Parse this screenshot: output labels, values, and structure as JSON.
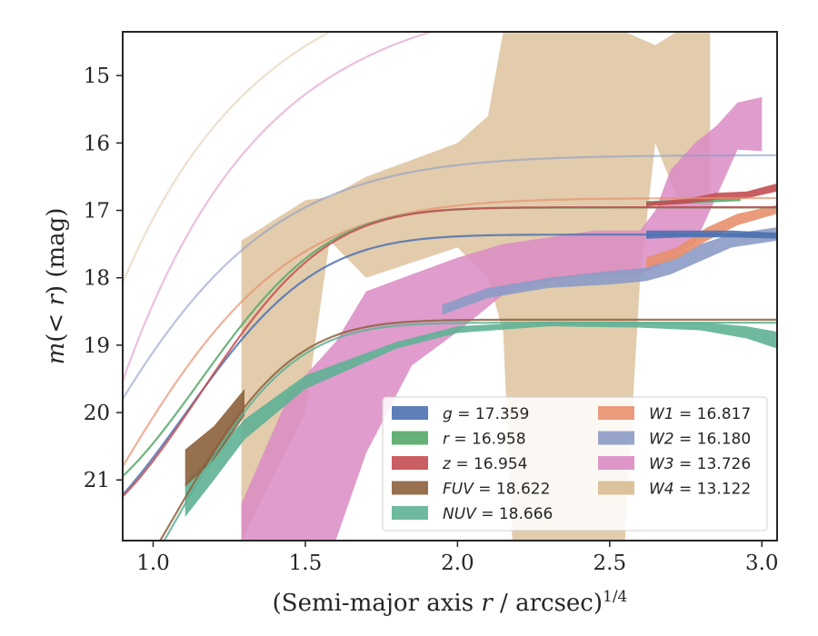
{
  "chart_data": {
    "type": "line",
    "xlabel": "(Semi-major axis r / arcsec)^1/4",
    "ylabel": "m(< r) (mag)",
    "xlim": [
      0.9,
      3.05
    ],
    "ylim": [
      21.9,
      14.35
    ],
    "y_inverted": true,
    "x_ticks": [
      1.0,
      1.5,
      2.0,
      2.5,
      3.0
    ],
    "x_tick_labels": [
      "1.0",
      "1.5",
      "2.0",
      "2.5",
      "3.0"
    ],
    "y_ticks": [
      15,
      16,
      17,
      18,
      19,
      20,
      21
    ],
    "y_tick_labels": [
      "15",
      "16",
      "17",
      "18",
      "19",
      "20",
      "21"
    ],
    "grid": false,
    "legend_position": "lower-right",
    "legend_columns": 2,
    "series": [
      {
        "name": "g",
        "label_var": "g",
        "label_value": "= 17.359",
        "color": "#4c72b0",
        "band": [
          {
            "x": 2.62,
            "lo": 17.3,
            "hi": 17.42
          },
          {
            "x": 2.75,
            "lo": 17.3,
            "hi": 17.4
          },
          {
            "x": 2.9,
            "lo": 17.3,
            "hi": 17.4
          },
          {
            "x": 3.05,
            "lo": 17.33,
            "hi": 17.42
          }
        ],
        "model": {
          "m_inf": 17.359,
          "a": 4.7,
          "x0": 0.55,
          "p": 2.3
        }
      },
      {
        "name": "r",
        "label_var": "r",
        "label_value": "= 16.958",
        "color": "#55a868",
        "band": [
          {
            "x": 2.62,
            "lo": 16.86,
            "hi": 16.93
          },
          {
            "x": 2.75,
            "lo": 16.84,
            "hi": 16.9
          },
          {
            "x": 2.93,
            "lo": 16.81,
            "hi": 16.86
          }
        ],
        "model": {
          "m_inf": 16.958,
          "a": 4.6,
          "x0": 0.58,
          "p": 2.4
        }
      },
      {
        "name": "z",
        "label_var": "z",
        "label_value": "= 16.954",
        "color": "#c44e52",
        "band": [
          {
            "x": 2.62,
            "lo": 16.88,
            "hi": 16.94
          },
          {
            "x": 2.75,
            "lo": 16.83,
            "hi": 16.9
          },
          {
            "x": 2.85,
            "lo": 16.74,
            "hi": 16.84
          },
          {
            "x": 2.95,
            "lo": 16.72,
            "hi": 16.82
          },
          {
            "x": 3.05,
            "lo": 16.6,
            "hi": 16.72
          }
        ],
        "model": {
          "m_inf": 16.954,
          "a": 4.95,
          "x0": 0.58,
          "p": 2.4
        }
      },
      {
        "name": "FUV",
        "label_var": "FUV",
        "label_value": "= 18.622",
        "color": "#8c613c",
        "band": [
          {
            "x": 1.105,
            "lo": 20.55,
            "hi": 21.1
          },
          {
            "x": 1.2,
            "lo": 20.2,
            "hi": 20.7
          },
          {
            "x": 1.3,
            "lo": 19.65,
            "hi": 20.05
          }
        ],
        "model": {
          "m_inf": 18.622,
          "a": 5.5,
          "x0": 0.45,
          "p": 2.6
        }
      },
      {
        "name": "NUV",
        "label_var": "NUV",
        "label_value": "= 18.666",
        "color": "#5fb195",
        "band": [
          {
            "x": 1.105,
            "lo": 21.05,
            "hi": 21.55
          },
          {
            "x": 1.2,
            "lo": 20.6,
            "hi": 21.0
          },
          {
            "x": 1.3,
            "lo": 20.1,
            "hi": 20.4
          },
          {
            "x": 1.5,
            "lo": 19.45,
            "hi": 19.65
          },
          {
            "x": 1.8,
            "lo": 18.95,
            "hi": 19.05
          },
          {
            "x": 2.0,
            "lo": 18.72,
            "hi": 18.82
          },
          {
            "x": 2.3,
            "lo": 18.65,
            "hi": 18.72
          },
          {
            "x": 2.6,
            "lo": 18.66,
            "hi": 18.74
          },
          {
            "x": 2.8,
            "lo": 18.66,
            "hi": 18.78
          },
          {
            "x": 2.95,
            "lo": 18.72,
            "hi": 18.9
          },
          {
            "x": 3.05,
            "lo": 18.8,
            "hi": 19.05
          }
        ],
        "model": {
          "m_inf": 18.666,
          "a": 5.6,
          "x0": 0.45,
          "p": 2.6
        }
      },
      {
        "name": "W1",
        "label_var": "W1",
        "label_value": "= 16.817",
        "color": "#e8906e",
        "band": [
          {
            "x": 2.62,
            "lo": 17.7,
            "hi": 17.85
          },
          {
            "x": 2.72,
            "lo": 17.55,
            "hi": 17.72
          },
          {
            "x": 2.82,
            "lo": 17.25,
            "hi": 17.45
          },
          {
            "x": 2.92,
            "lo": 17.05,
            "hi": 17.22
          },
          {
            "x": 3.05,
            "lo": 16.92,
            "hi": 17.05
          }
        ],
        "model": {
          "m_inf": 16.817,
          "a": 6.0,
          "x0": 0.55,
          "p": 1.6
        }
      },
      {
        "name": "W2",
        "label_var": "W2",
        "label_value": "= 16.180",
        "color": "#8c9bc6",
        "band": [
          {
            "x": 1.95,
            "lo": 18.4,
            "hi": 18.55
          },
          {
            "x": 2.1,
            "lo": 18.15,
            "hi": 18.3
          },
          {
            "x": 2.3,
            "lo": 18.0,
            "hi": 18.15
          },
          {
            "x": 2.5,
            "lo": 17.9,
            "hi": 18.1
          },
          {
            "x": 2.62,
            "lo": 17.85,
            "hi": 18.05
          },
          {
            "x": 2.7,
            "lo": 17.7,
            "hi": 17.95
          },
          {
            "x": 2.8,
            "lo": 17.5,
            "hi": 17.75
          },
          {
            "x": 2.9,
            "lo": 17.35,
            "hi": 17.55
          },
          {
            "x": 3.05,
            "lo": 17.25,
            "hi": 17.45
          }
        ],
        "model": {
          "m_inf": 16.18,
          "a": 6.0,
          "x0": 0.55,
          "p": 1.4
        }
      },
      {
        "name": "W3",
        "label_var": "W3",
        "label_value": "= 13.726",
        "color": "#da8bc3",
        "band": [
          {
            "x": 1.29,
            "lo": 21.35,
            "hi": 21.9
          },
          {
            "x": 1.45,
            "lo": 19.7,
            "hi": 21.9
          },
          {
            "x": 1.6,
            "lo": 18.95,
            "hi": 21.9
          },
          {
            "x": 1.7,
            "lo": 18.2,
            "hi": 20.6
          },
          {
            "x": 1.85,
            "lo": 17.95,
            "hi": 19.3
          },
          {
            "x": 2.0,
            "lo": 17.7,
            "hi": 18.8
          },
          {
            "x": 2.15,
            "lo": 17.5,
            "hi": 18.25
          },
          {
            "x": 2.3,
            "lo": 17.4,
            "hi": 18.05
          },
          {
            "x": 2.45,
            "lo": 17.3,
            "hi": 17.95
          },
          {
            "x": 2.6,
            "lo": 17.3,
            "hi": 17.95
          },
          {
            "x": 2.65,
            "lo": 17.0,
            "hi": 17.85
          },
          {
            "x": 2.7,
            "lo": 16.4,
            "hi": 17.7
          },
          {
            "x": 2.78,
            "lo": 16.0,
            "hi": 17.5
          },
          {
            "x": 2.85,
            "lo": 15.75,
            "hi": 16.8
          },
          {
            "x": 2.92,
            "lo": 15.4,
            "hi": 16.1
          },
          {
            "x": 3.0,
            "lo": 15.32,
            "hi": 16.12
          }
        ],
        "model": {
          "m_inf": 13.726,
          "a": 14.0,
          "x0": 0.5,
          "p": 1.0
        }
      },
      {
        "name": "W4",
        "label_var": "W4",
        "label_value": "= 13.122",
        "color": "#d8bb90",
        "band": [
          {
            "x": 1.29,
            "lo": 17.45,
            "hi": 21.9
          },
          {
            "x": 1.5,
            "lo": 16.85,
            "hi": 20.0
          },
          {
            "x": 1.58,
            "lo": 16.8,
            "hi": 17.45
          },
          {
            "x": 1.7,
            "lo": 16.5,
            "hi": 18.0
          },
          {
            "x": 2.0,
            "lo": 16.0,
            "hi": 17.55
          },
          {
            "x": 2.1,
            "lo": 15.6,
            "hi": 18.0
          },
          {
            "x": 2.15,
            "lo": 14.35,
            "hi": 18.8
          },
          {
            "x": 2.18,
            "lo": 14.35,
            "hi": 21.9
          },
          {
            "x": 2.5,
            "lo": 14.35,
            "hi": 21.9
          },
          {
            "x": 2.55,
            "lo": 14.35,
            "hi": 21.9
          },
          {
            "x": 2.6,
            "lo": 14.45,
            "hi": 18.0
          },
          {
            "x": 2.65,
            "lo": 14.55,
            "hi": 16.0
          },
          {
            "x": 2.72,
            "lo": 14.35,
            "hi": 16.8
          },
          {
            "x": 2.83,
            "lo": 14.35,
            "hi": 16.8
          }
        ],
        "model": {
          "m_inf": 13.122,
          "a": 13.0,
          "x0": 0.5,
          "p": 0.9
        }
      }
    ]
  }
}
